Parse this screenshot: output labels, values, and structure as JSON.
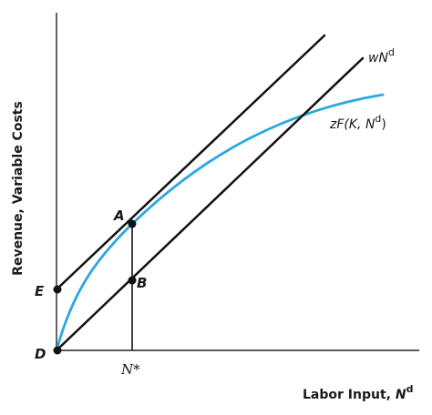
{
  "axes": {
    "y_title": "Revenue, Variable Costs",
    "x_title_main": "Labor Input, ",
    "x_title_var": "N",
    "x_title_sup": "d"
  },
  "curves": {
    "cost_line": {
      "prefix": "w",
      "var": "N",
      "sup": "d"
    },
    "revenue_curve": {
      "text_a": "zF(K, N",
      "sup": "d",
      "text_b": ")"
    }
  },
  "points": {
    "A": "A",
    "B": "B",
    "D": "D",
    "E": "E"
  },
  "tick": {
    "n_star": "N*"
  },
  "colors": {
    "curve": "#2aa8e0",
    "lines": "#111111",
    "axes": "#222222"
  }
}
